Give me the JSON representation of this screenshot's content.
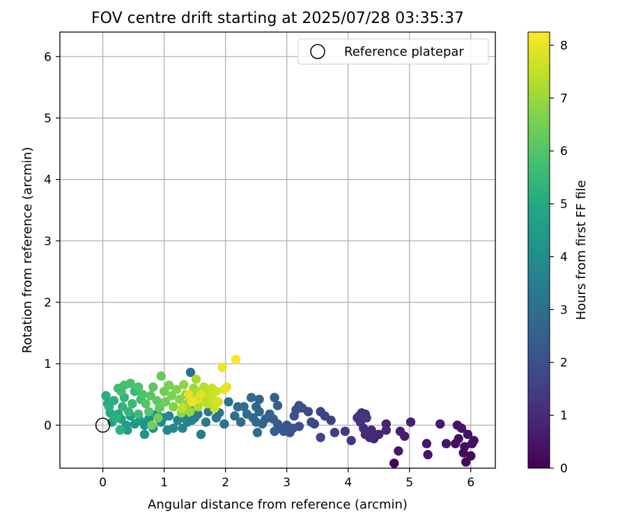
{
  "chart_data": {
    "type": "scatter",
    "title": "FOV centre drift starting at 2025/07/28 03:35:37",
    "xlabel": "Angular distance from reference (arcmin)",
    "ylabel": "Rotation from reference (arcmin)",
    "xlim": [
      -0.7,
      6.4
    ],
    "ylim": [
      -0.7,
      6.4
    ],
    "xticks": [
      0,
      1,
      2,
      3,
      4,
      5,
      6
    ],
    "yticks": [
      0,
      1,
      2,
      3,
      4,
      5,
      6
    ],
    "grid": true,
    "legend": {
      "placement": "upper-right",
      "entries": [
        "Reference platepar"
      ]
    },
    "colorbar": {
      "label": "Hours from first FF file",
      "colormap": "viridis",
      "range": [
        0,
        8.25
      ],
      "ticks": [
        0,
        1,
        2,
        3,
        4,
        5,
        6,
        7,
        8
      ]
    },
    "reference_point": {
      "x": 0,
      "y": 0
    },
    "series": [
      {
        "fields": [
          "x",
          "y",
          "hours"
        ],
        "points": [
          [
            4.75,
            -0.62,
            0.1
          ],
          [
            5.92,
            -0.6,
            0.15
          ],
          [
            6.0,
            -0.5,
            0.2
          ],
          [
            5.88,
            -0.45,
            0.25
          ],
          [
            6.05,
            -0.25,
            0.3
          ],
          [
            6.02,
            -0.3,
            0.35
          ],
          [
            5.8,
            -0.22,
            0.3
          ],
          [
            5.75,
            -0.3,
            0.35
          ],
          [
            5.85,
            -0.05,
            0.4
          ],
          [
            5.78,
            0.0,
            0.45
          ],
          [
            5.95,
            -0.15,
            0.4
          ],
          [
            5.9,
            -0.35,
            0.3
          ],
          [
            5.3,
            -0.48,
            0.5
          ],
          [
            5.28,
            -0.3,
            0.55
          ],
          [
            5.6,
            -0.3,
            0.5
          ],
          [
            5.5,
            0.02,
            0.6
          ],
          [
            4.82,
            -0.42,
            0.55
          ],
          [
            4.92,
            -0.18,
            0.65
          ],
          [
            4.85,
            -0.1,
            0.7
          ],
          [
            5.02,
            0.05,
            0.75
          ],
          [
            4.62,
            0.02,
            0.8
          ],
          [
            4.62,
            -0.08,
            0.85
          ],
          [
            4.42,
            -0.22,
            0.8
          ],
          [
            4.5,
            -0.15,
            0.9
          ],
          [
            4.35,
            -0.2,
            0.95
          ],
          [
            4.38,
            -0.08,
            0.95
          ],
          [
            4.28,
            -0.15,
            1.0
          ],
          [
            4.25,
            -0.05,
            1.05
          ],
          [
            4.22,
            0.2,
            1.1
          ],
          [
            4.28,
            0.18,
            1.1
          ],
          [
            4.15,
            0.12,
            1.15
          ],
          [
            4.18,
            0.15,
            1.2
          ],
          [
            4.2,
            0.05,
            1.25
          ],
          [
            4.3,
            0.12,
            1.3
          ],
          [
            4.05,
            -0.25,
            1.35
          ],
          [
            3.95,
            -0.1,
            1.4
          ],
          [
            3.78,
            -0.12,
            1.5
          ],
          [
            3.72,
            0.08,
            1.55
          ],
          [
            3.62,
            0.15,
            1.6
          ],
          [
            3.55,
            0.22,
            1.65
          ],
          [
            3.55,
            -0.2,
            1.7
          ],
          [
            3.45,
            0.02,
            1.75
          ],
          [
            3.4,
            0.05,
            1.8
          ],
          [
            3.35,
            0.22,
            1.85
          ],
          [
            3.25,
            0.28,
            1.9
          ],
          [
            3.2,
            0.32,
            1.95
          ],
          [
            3.15,
            0.25,
            2.0
          ],
          [
            3.12,
            0.15,
            2.05
          ],
          [
            3.2,
            -0.02,
            2.0
          ],
          [
            3.1,
            -0.05,
            2.1
          ],
          [
            3.05,
            -0.12,
            2.1
          ],
          [
            3.0,
            0.0,
            2.15
          ],
          [
            2.95,
            -0.1,
            2.2
          ],
          [
            2.88,
            -0.05,
            2.25
          ],
          [
            2.85,
            0.02,
            2.3
          ],
          [
            2.8,
            -0.1,
            2.35
          ],
          [
            2.78,
            0.1,
            2.4
          ],
          [
            2.85,
            0.32,
            2.45
          ],
          [
            2.8,
            0.45,
            2.5
          ],
          [
            2.72,
            0.18,
            2.55
          ],
          [
            2.65,
            0.1,
            2.6
          ],
          [
            2.6,
            0.02,
            2.65
          ],
          [
            2.55,
            0.42,
            2.7
          ],
          [
            2.55,
            0.22,
            2.7
          ],
          [
            2.5,
            0.3,
            2.75
          ],
          [
            2.5,
            0.05,
            2.8
          ],
          [
            2.45,
            0.12,
            2.8
          ],
          [
            2.52,
            -0.12,
            2.85
          ],
          [
            2.42,
            0.45,
            2.9
          ],
          [
            2.35,
            0.18,
            2.9
          ],
          [
            2.3,
            0.3,
            2.95
          ],
          [
            2.25,
            0.05,
            3.0
          ],
          [
            2.2,
            0.3,
            3.0
          ],
          [
            2.15,
            0.15,
            3.05
          ],
          [
            2.05,
            0.38,
            3.1
          ],
          [
            1.98,
            0.02,
            3.15
          ],
          [
            1.9,
            0.2,
            3.2
          ],
          [
            1.85,
            0.12,
            3.25
          ],
          [
            1.8,
            0.3,
            3.2
          ],
          [
            1.72,
            0.22,
            3.3
          ],
          [
            1.68,
            0.05,
            3.35
          ],
          [
            1.6,
            -0.15,
            3.4
          ],
          [
            1.55,
            0.18,
            3.45
          ],
          [
            1.5,
            0.12,
            3.5
          ],
          [
            1.45,
            0.28,
            3.5
          ],
          [
            1.43,
            0.86,
            3.05
          ],
          [
            1.45,
            0.08,
            3.55
          ],
          [
            1.38,
            0.05,
            3.6
          ],
          [
            1.32,
            0.12,
            3.65
          ],
          [
            1.3,
            -0.05,
            3.7
          ],
          [
            1.22,
            0.08,
            3.7
          ],
          [
            1.15,
            -0.05,
            3.75
          ],
          [
            1.08,
            0.15,
            3.8
          ],
          [
            1.05,
            -0.08,
            3.85
          ],
          [
            0.98,
            0.12,
            3.85
          ],
          [
            0.95,
            0.05,
            3.9
          ],
          [
            0.88,
            0.18,
            4.0
          ],
          [
            0.82,
            -0.05,
            4.1
          ],
          [
            0.75,
            0.1,
            4.15
          ],
          [
            0.68,
            0.0,
            4.2
          ],
          [
            0.68,
            -0.15,
            4.25
          ],
          [
            0.6,
            0.08,
            4.3
          ],
          [
            0.52,
            0.02,
            4.4
          ],
          [
            0.45,
            0.15,
            4.5
          ],
          [
            0.4,
            -0.08,
            4.55
          ],
          [
            0.38,
            0.0,
            4.6
          ],
          [
            0.3,
            0.1,
            4.7
          ],
          [
            0.25,
            0.18,
            4.8
          ],
          [
            0.15,
            0.05,
            4.9
          ],
          [
            0.12,
            0.2,
            5.0
          ],
          [
            0.08,
            0.35,
            5.05
          ],
          [
            0.05,
            0.48,
            5.1
          ],
          [
            0.1,
            0.3,
            5.15
          ],
          [
            0.18,
            0.4,
            5.2
          ],
          [
            0.22,
            0.12,
            5.25
          ],
          [
            0.28,
            -0.08,
            5.3
          ],
          [
            0.32,
            0.3,
            5.35
          ],
          [
            0.35,
            0.45,
            5.4
          ],
          [
            0.42,
            0.22,
            5.45
          ],
          [
            0.48,
            0.35,
            5.5
          ],
          [
            0.52,
            0.55,
            5.55
          ],
          [
            0.58,
            0.18,
            5.6
          ],
          [
            0.62,
            0.42,
            5.65
          ],
          [
            0.25,
            0.6,
            5.7
          ],
          [
            0.3,
            0.55,
            5.75
          ],
          [
            0.35,
            0.65,
            5.8
          ],
          [
            0.45,
            0.68,
            5.85
          ],
          [
            0.58,
            0.62,
            5.9
          ],
          [
            0.65,
            0.5,
            5.95
          ],
          [
            0.7,
            0.35,
            6.0
          ],
          [
            0.75,
            0.22,
            6.05
          ],
          [
            0.78,
            0.48,
            6.1
          ],
          [
            0.82,
            0.62,
            6.15
          ],
          [
            0.88,
            0.4,
            6.2
          ],
          [
            0.92,
            0.28,
            6.25
          ],
          [
            0.95,
            0.8,
            6.3
          ],
          [
            1.0,
            0.55,
            6.35
          ],
          [
            1.02,
            0.38,
            6.4
          ],
          [
            0.9,
            0.12,
            6.45
          ],
          [
            0.8,
            0.0,
            6.5
          ],
          [
            1.08,
            0.65,
            6.55
          ],
          [
            1.12,
            0.48,
            6.6
          ],
          [
            1.15,
            0.3,
            6.65
          ],
          [
            1.2,
            0.58,
            6.7
          ],
          [
            1.25,
            0.42,
            6.75
          ],
          [
            1.28,
            0.2,
            6.8
          ],
          [
            1.32,
            0.66,
            6.85
          ],
          [
            1.35,
            0.5,
            6.9
          ],
          [
            1.38,
            0.35,
            6.95
          ],
          [
            1.42,
            0.22,
            7.0
          ],
          [
            1.48,
            0.6,
            7.05
          ],
          [
            1.5,
            0.45,
            7.1
          ],
          [
            1.52,
            0.75,
            7.15
          ],
          [
            1.55,
            0.3,
            7.2
          ],
          [
            1.58,
            0.55,
            7.25
          ],
          [
            1.62,
            0.4,
            7.3
          ],
          [
            1.65,
            0.62,
            7.35
          ],
          [
            1.68,
            0.5,
            7.4
          ],
          [
            1.7,
            0.35,
            7.45
          ],
          [
            1.75,
            0.48,
            7.5
          ],
          [
            1.78,
            0.6,
            7.55
          ],
          [
            1.8,
            0.42,
            7.6
          ],
          [
            1.82,
            0.28,
            7.65
          ],
          [
            1.85,
            0.55,
            7.7
          ],
          [
            1.88,
            0.38,
            7.75
          ],
          [
            1.55,
            0.42,
            7.8
          ],
          [
            1.6,
            0.5,
            7.85
          ],
          [
            1.98,
            0.58,
            7.9
          ],
          [
            2.02,
            0.62,
            7.95
          ],
          [
            1.95,
            0.94,
            8.05
          ],
          [
            2.17,
            1.07,
            8.2
          ],
          [
            1.45,
            0.38,
            8.0
          ],
          [
            1.4,
            0.5,
            7.9
          ],
          [
            1.3,
            0.28,
            7.5
          ]
        ]
      }
    ]
  }
}
